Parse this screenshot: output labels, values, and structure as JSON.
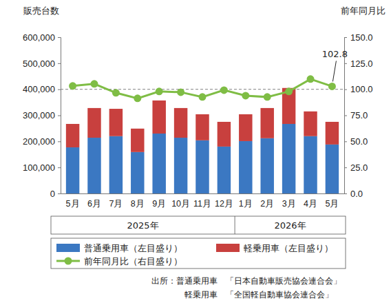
{
  "chart_data": {
    "type": "bar",
    "stacked": true,
    "y_label": "販売台数",
    "y2_label": "前年同月比",
    "categories": [
      "5月",
      "6月",
      "7月",
      "8月",
      "9月",
      "10月",
      "11月",
      "12月",
      "1月",
      "2月",
      "3月",
      "4月",
      "5月"
    ],
    "category_groups": [
      {
        "label": "2025年",
        "start": 0,
        "end": 7
      },
      {
        "label": "2026年",
        "start": 8,
        "end": 12
      }
    ],
    "series": [
      {
        "name": "普通乗用車（左目盛り）",
        "type": "bar",
        "color": "#3b78c2",
        "values": [
          177000,
          214000,
          220000,
          159000,
          230000,
          214000,
          204000,
          180000,
          201000,
          212000,
          267000,
          220000,
          188000
        ]
      },
      {
        "name": "軽乗用車（左目盛り）",
        "type": "bar",
        "color": "#c8403e",
        "values": [
          90000,
          114000,
          105000,
          90000,
          127000,
          114000,
          100000,
          95000,
          103000,
          116000,
          138000,
          95000,
          87000
        ]
      },
      {
        "name": "前年同月比（右目盛り）",
        "type": "line",
        "axis": "y2",
        "color": "#7fbd45",
        "marker": "circle",
        "values": [
          103.2,
          105.2,
          96.6,
          91.3,
          97.9,
          97.2,
          92.6,
          99.2,
          93.9,
          92.6,
          97.9,
          109.8,
          102.8
        ]
      }
    ],
    "ylim": [
      0,
      600000
    ],
    "yticks": [
      0,
      {
        "value": 100000,
        "label": "100,000"
      },
      {
        "value": 200000,
        "label": "200,000"
      },
      {
        "value": 300000,
        "label": "300,000"
      },
      {
        "value": 400000,
        "label": "400,000"
      },
      {
        "value": 500000,
        "label": "500,000"
      },
      {
        "value": 600000,
        "label": "600,000"
      }
    ],
    "y2lim": [
      0,
      150
    ],
    "y2ticks": [
      {
        "value": 0,
        "label": "0.0"
      },
      {
        "value": 25,
        "label": "25.0"
      },
      {
        "value": 50,
        "label": "50.0"
      },
      {
        "value": 75,
        "label": "75.0"
      },
      {
        "value": 100,
        "label": "100.0"
      },
      {
        "value": 125,
        "label": "125.0"
      },
      {
        "value": 150,
        "label": "150.0"
      }
    ],
    "reference_lines": [
      {
        "value": 100,
        "axis": "y2",
        "line_style": "dashed",
        "color": "#9a9a9a"
      }
    ],
    "annotations": [
      {
        "text": "102.8",
        "index": 12,
        "axis": "y2"
      }
    ],
    "grid": false,
    "legend": "bottom",
    "notes": [
      "出所：普通乗用車　「日本自動車販売協会連合会」",
      "軽乗用車　「全国軽自動車協会連合会」"
    ]
  }
}
